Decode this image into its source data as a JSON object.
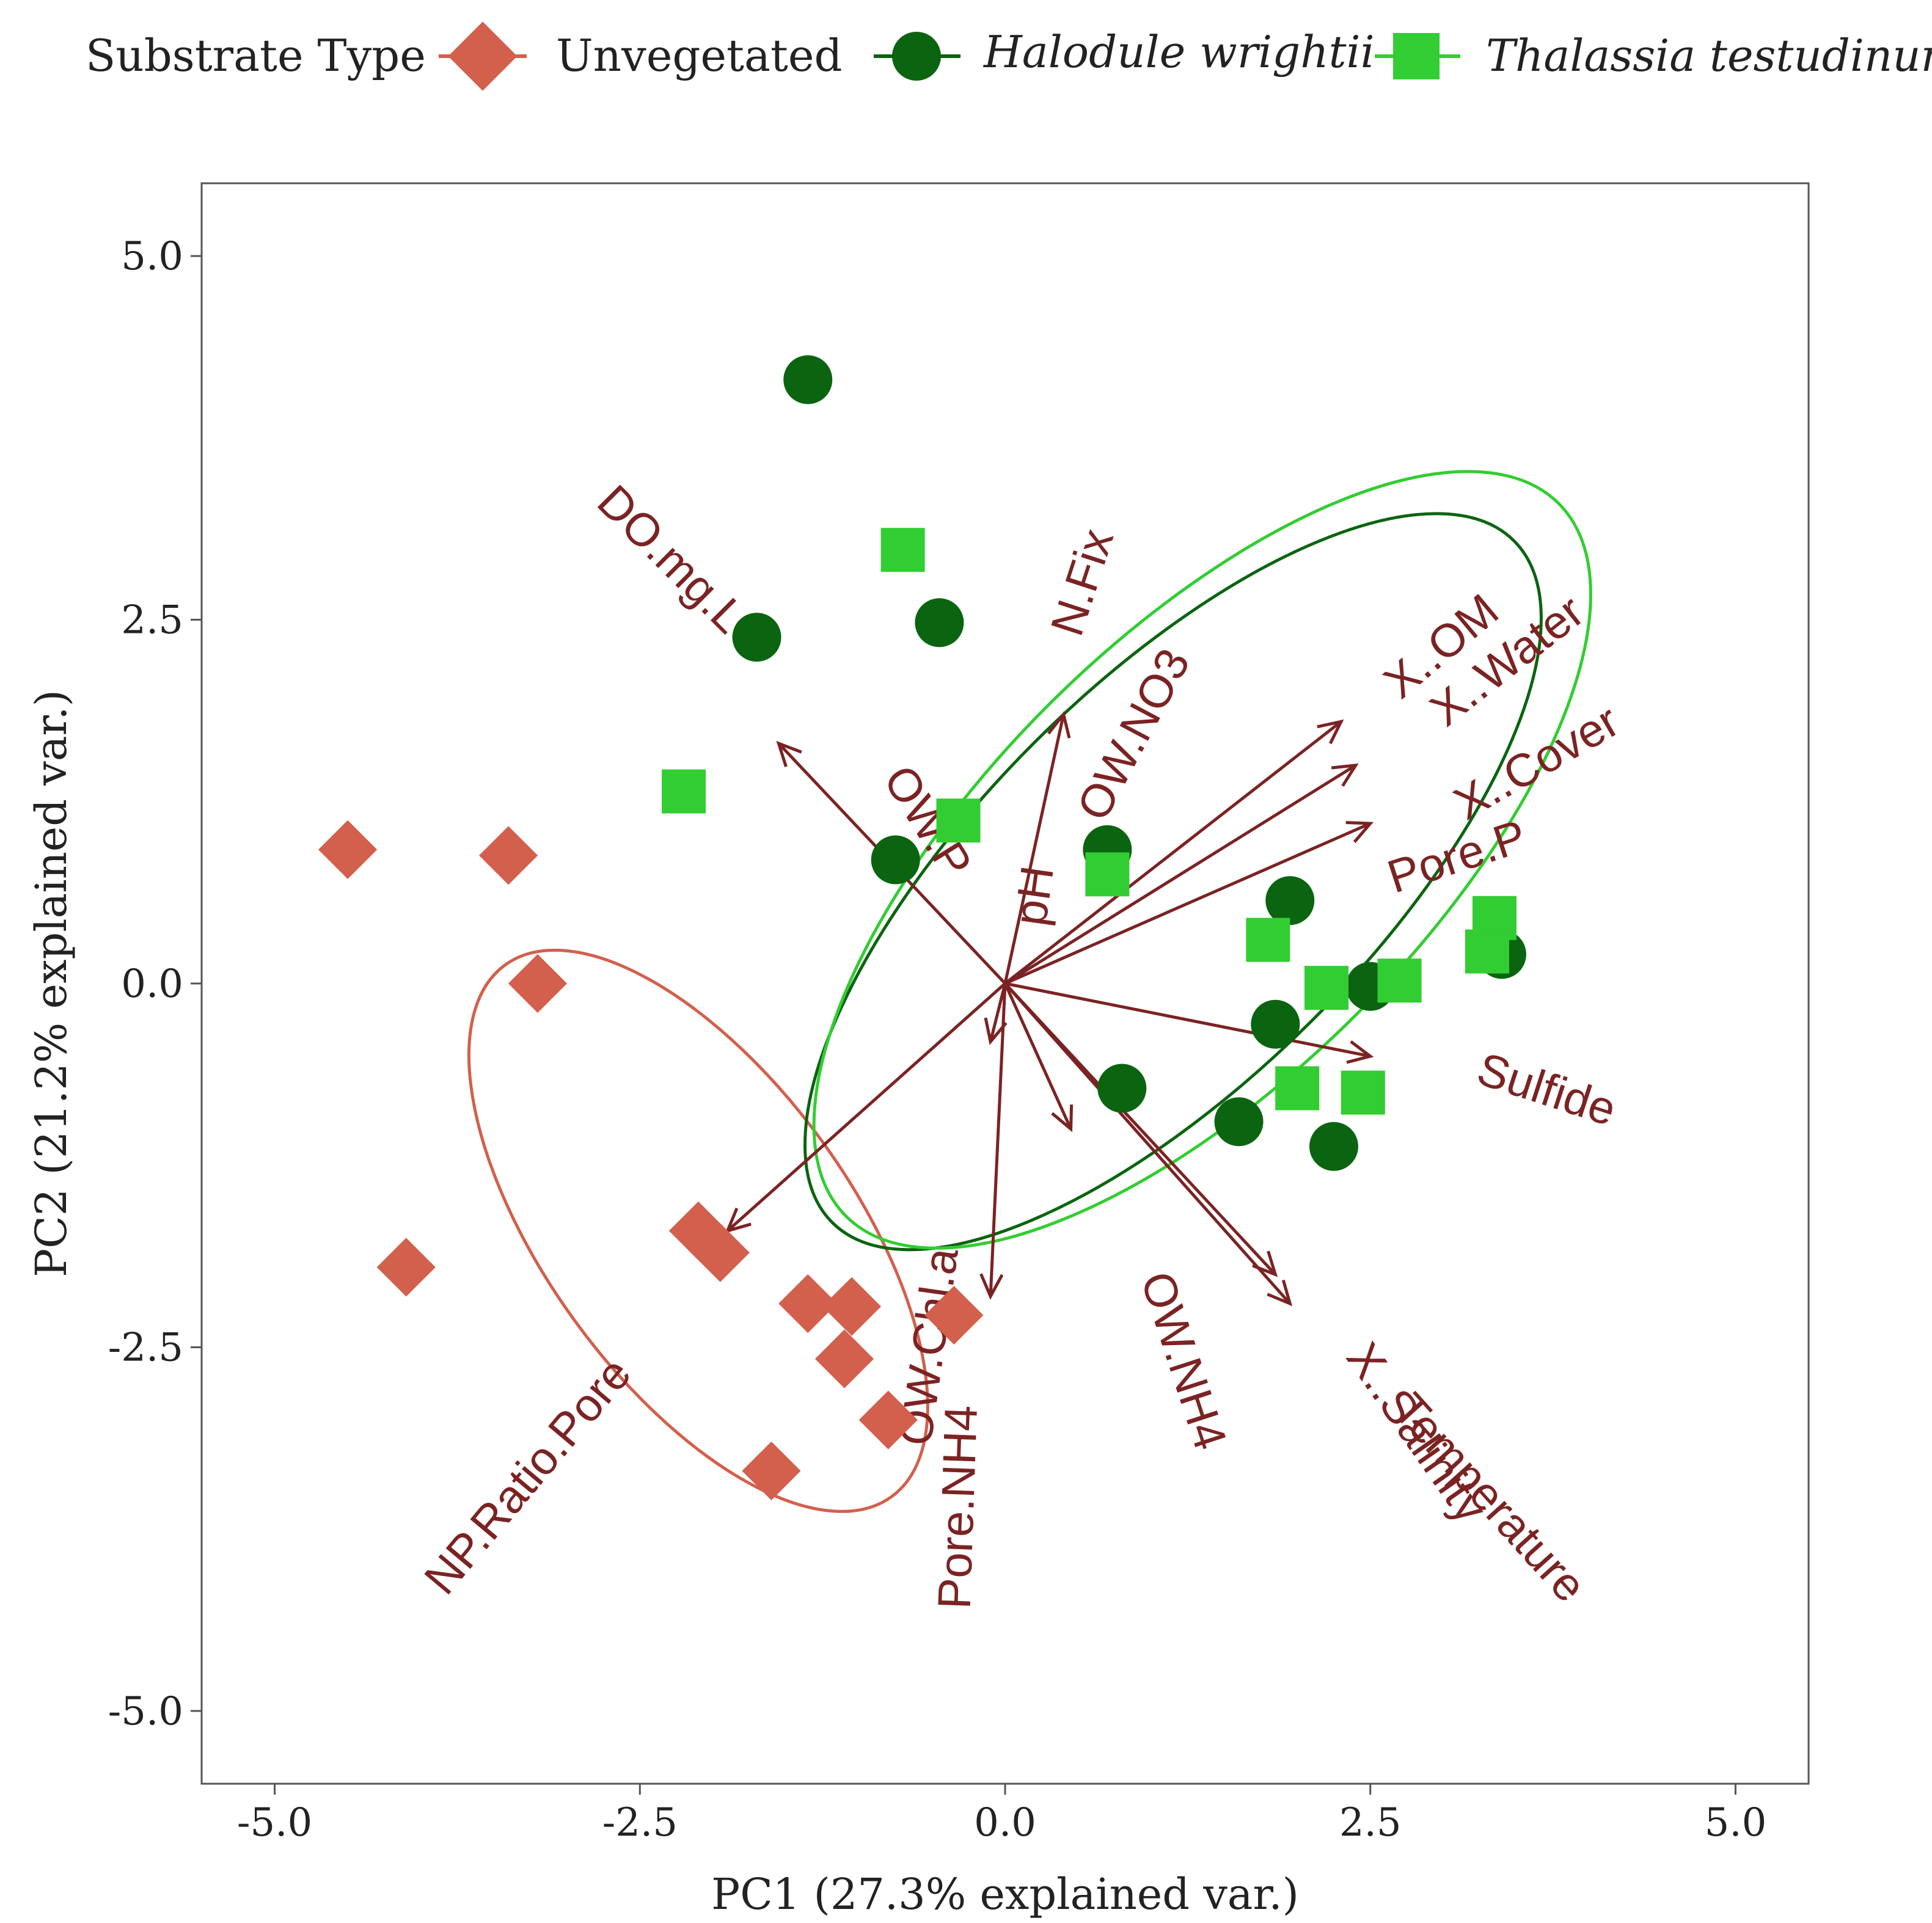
{
  "chart_data": {
    "type": "scatter",
    "xlabel": "PC1 (27.3% explained var.)",
    "ylabel": "PC2 (21.2% explained var.)",
    "xlim": [
      -5.5,
      5.5
    ],
    "ylim": [
      -5.5,
      5.5
    ],
    "x_ticks": [
      "-5.0",
      "-2.5",
      "0.0",
      "2.5",
      "5.0"
    ],
    "y_ticks": [
      "5.0",
      "2.5",
      "0.0",
      "-2.5",
      "-5.0"
    ],
    "grid": false,
    "legend": {
      "title": "Substrate Type",
      "position": "top",
      "entries": [
        "Unvegetated",
        "Halodule wrightii",
        "Thalassia testudinum"
      ]
    },
    "series": [
      {
        "name": "Unvegetated",
        "marker": "diamond",
        "color": "#D2604C",
        "points": [
          [
            -4.5,
            0.92
          ],
          [
            -3.4,
            0.88
          ],
          [
            -3.2,
            0.0
          ],
          [
            -4.1,
            -1.95
          ],
          [
            -2.1,
            -1.7
          ],
          [
            -1.95,
            -1.85
          ],
          [
            -1.35,
            -2.2
          ],
          [
            -1.05,
            -2.22
          ],
          [
            -1.1,
            -2.58
          ],
          [
            -0.35,
            -2.28
          ],
          [
            -0.8,
            -3.0
          ],
          [
            -1.6,
            -3.35
          ]
        ],
        "ellipse": {
          "cx": -2.1,
          "cy": -1.7,
          "rx": 2.25,
          "ry": 1.05,
          "angle_deg": 54
        }
      },
      {
        "name": "Halodule wrightii",
        "marker": "circle",
        "color": "#0B6410",
        "points": [
          [
            -1.35,
            4.15
          ],
          [
            -1.7,
            2.38
          ],
          [
            -0.45,
            2.48
          ],
          [
            -0.75,
            0.85
          ],
          [
            0.7,
            0.92
          ],
          [
            1.95,
            0.57
          ],
          [
            2.5,
            -0.02
          ],
          [
            1.85,
            -0.28
          ],
          [
            0.8,
            -0.72
          ],
          [
            1.6,
            -0.95
          ],
          [
            2.25,
            -1.12
          ],
          [
            3.4,
            0.2
          ]
        ],
        "ellipse": {
          "cx": 1.15,
          "cy": 0.7,
          "rx": 3.3,
          "ry": 1.35,
          "angle_deg": -45
        }
      },
      {
        "name": "Thalassia testudinum",
        "marker": "square",
        "color": "#32CD32",
        "points": [
          [
            -0.7,
            2.98
          ],
          [
            -2.2,
            1.32
          ],
          [
            -0.32,
            1.12
          ],
          [
            0.7,
            0.75
          ],
          [
            1.8,
            0.3
          ],
          [
            2.2,
            -0.03
          ],
          [
            2.7,
            0.02
          ],
          [
            3.35,
            0.45
          ],
          [
            3.3,
            0.22
          ],
          [
            2.0,
            -0.72
          ],
          [
            2.45,
            -0.75
          ]
        ],
        "ellipse": {
          "cx": 1.35,
          "cy": 0.85,
          "rx": 3.45,
          "ry": 1.5,
          "angle_deg": -45
        }
      }
    ],
    "loadings": {
      "color": "#7B2323",
      "vectors": [
        {
          "name": "DO.mg.L",
          "x": -1.55,
          "y": 1.65
        },
        {
          "name": "N.Fix",
          "x": 0.4,
          "y": 1.85
        },
        {
          "name": "OW.NO3",
          "x": 0.0,
          "y": 0.0
        },
        {
          "name": "X..OM",
          "x": 2.3,
          "y": 1.8
        },
        {
          "name": "X..Water",
          "x": 2.4,
          "y": 1.5
        },
        {
          "name": "X..Cover",
          "x": 2.5,
          "y": 1.1
        },
        {
          "name": "Pore.P",
          "x": 0.0,
          "y": 0.0
        },
        {
          "name": "Sulfide",
          "x": 2.5,
          "y": -0.5
        },
        {
          "name": "pH",
          "x": -0.1,
          "y": -0.4
        },
        {
          "name": "OW.P",
          "x": 0.0,
          "y": 0.0
        },
        {
          "name": "OW.NH4",
          "x": 0.45,
          "y": -1.0
        },
        {
          "name": "X..Salinity",
          "x": 1.85,
          "y": -2.0
        },
        {
          "name": "Temperature",
          "x": 1.95,
          "y": -2.2
        },
        {
          "name": "OW.Chl.a",
          "x": -0.1,
          "y": -2.15
        },
        {
          "name": "Pore.NH4",
          "x": 0.0,
          "y": 0.0
        },
        {
          "name": "NP.Ratio.Pore",
          "x": -1.9,
          "y": -1.7
        }
      ],
      "labels": [
        {
          "text": "DO.mg.L",
          "x": -2.3,
          "y": 2.9,
          "rotate": 45
        },
        {
          "text": "N.Fix",
          "x": 0.55,
          "y": 2.75,
          "rotate": -72
        },
        {
          "text": "OW.NO3",
          "x": 0.9,
          "y": 1.7,
          "rotate": -62
        },
        {
          "text": "X..OM",
          "x": 3.0,
          "y": 2.3,
          "rotate": -40
        },
        {
          "text": "X..Water",
          "x": 3.45,
          "y": 2.2,
          "rotate": -38
        },
        {
          "text": "X..Cover",
          "x": 3.65,
          "y": 1.5,
          "rotate": -30
        },
        {
          "text": "Pore.P",
          "x": 3.1,
          "y": 0.85,
          "rotate": -18
        },
        {
          "text": "Sulfide",
          "x": 3.7,
          "y": -0.75,
          "rotate": 18
        },
        {
          "text": "pH",
          "x": 0.22,
          "y": 0.6,
          "rotate": -82
        },
        {
          "text": "OW.P",
          "x": -0.55,
          "y": 1.1,
          "rotate": 58
        },
        {
          "text": "OW.NH4",
          "x": 1.2,
          "y": -2.6,
          "rotate": 72
        },
        {
          "text": "X..Salinity",
          "x": 2.8,
          "y": -3.1,
          "rotate": 55
        },
        {
          "text": "Temperature",
          "x": 3.3,
          "y": -3.55,
          "rotate": 48
        },
        {
          "text": "OW.Chl.a",
          "x": -0.5,
          "y": -2.5,
          "rotate": -82
        },
        {
          "text": "Pore.NH4",
          "x": -0.3,
          "y": -3.6,
          "rotate": -88
        },
        {
          "text": "NP.Ratio.Pore",
          "x": -3.25,
          "y": -3.4,
          "rotate": -50
        }
      ]
    }
  }
}
